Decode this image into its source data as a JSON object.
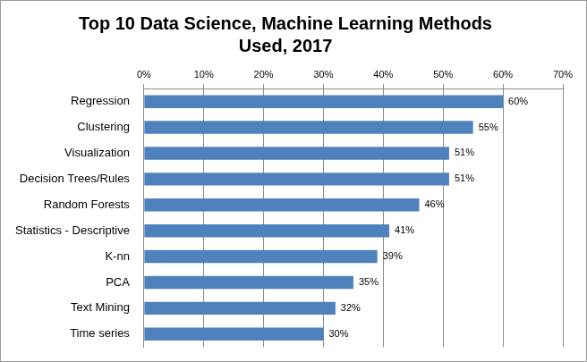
{
  "chart_data": {
    "type": "bar",
    "orientation": "horizontal",
    "title": "Top 10 Data Science, Machine Learning Methods Used, 2017",
    "categories": [
      "Regression",
      "Clustering",
      "Visualization",
      "Decision Trees/Rules",
      "Random Forests",
      "Statistics - Descriptive",
      "K-nn",
      "PCA",
      "Text Mining",
      "Time series"
    ],
    "values": [
      60,
      55,
      51,
      51,
      46,
      41,
      39,
      35,
      32,
      30
    ],
    "value_labels": [
      "60%",
      "55%",
      "51%",
      "51%",
      "46%",
      "41%",
      "39%",
      "35%",
      "32%",
      "30%"
    ],
    "color": "#4f81bd",
    "xlim": [
      0,
      70
    ],
    "xticks": [
      {
        "value": 0,
        "label": "0%"
      },
      {
        "value": 10,
        "label": "10%"
      },
      {
        "value": 20,
        "label": "20%"
      },
      {
        "value": 30,
        "label": "30%"
      },
      {
        "value": 40,
        "label": "40%"
      },
      {
        "value": 50,
        "label": "50%"
      },
      {
        "value": 60,
        "label": "60%"
      },
      {
        "value": 70,
        "label": "70%"
      }
    ],
    "grid": true,
    "data_labels": true
  }
}
